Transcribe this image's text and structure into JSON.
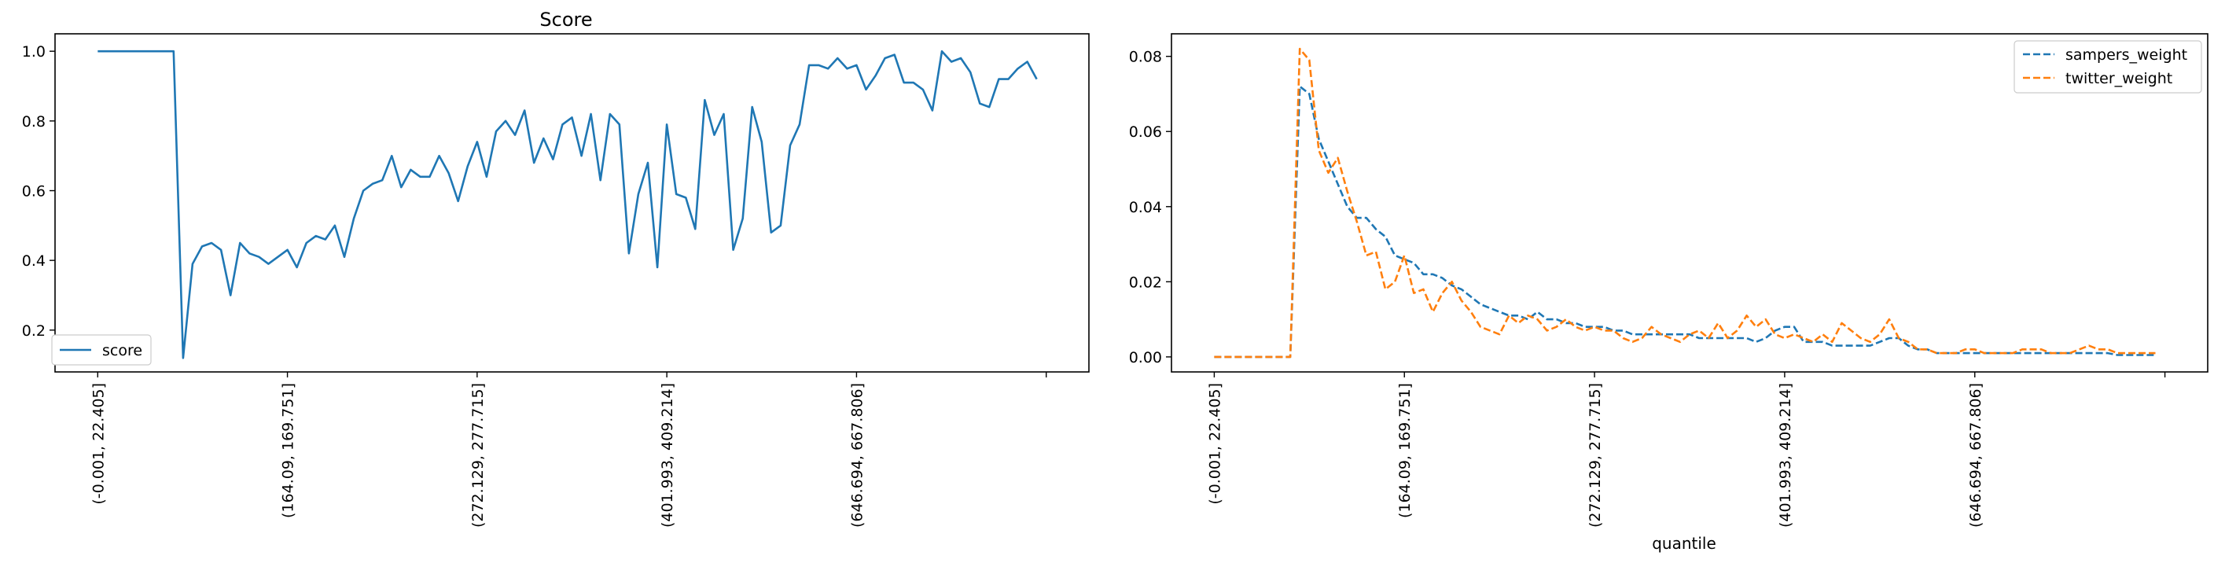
{
  "chart_data": [
    {
      "type": "line",
      "title": "Score",
      "xlabel": "",
      "ylabel": "",
      "ylim": [
        0.08,
        1.05
      ],
      "grid": false,
      "legend": "lower-left",
      "x_tick_labels": [
        "(-0.001, 22.405]",
        "(164.09, 169.751]",
        "(272.129, 277.715]",
        "(401.993, 409.214]",
        "(646.694, 667.806]",
        ""
      ],
      "x_tick_positions": [
        0,
        20,
        40,
        60,
        80,
        100
      ],
      "y_ticks": [
        "0.2",
        "0.4",
        "0.6",
        "0.8",
        "1.0"
      ],
      "series": [
        {
          "name": "score",
          "color": "#1f77b4",
          "dash": "solid",
          "values": [
            1.0,
            1.0,
            1.0,
            1.0,
            1.0,
            1.0,
            1.0,
            1.0,
            1.0,
            0.12,
            0.39,
            0.44,
            0.45,
            0.43,
            0.3,
            0.45,
            0.42,
            0.41,
            0.39,
            0.41,
            0.43,
            0.38,
            0.45,
            0.47,
            0.46,
            0.5,
            0.41,
            0.52,
            0.6,
            0.62,
            0.63,
            0.7,
            0.61,
            0.66,
            0.64,
            0.64,
            0.7,
            0.65,
            0.57,
            0.67,
            0.74,
            0.64,
            0.77,
            0.8,
            0.76,
            0.83,
            0.68,
            0.75,
            0.69,
            0.79,
            0.81,
            0.7,
            0.82,
            0.63,
            0.82,
            0.79,
            0.42,
            0.59,
            0.68,
            0.38,
            0.79,
            0.59,
            0.58,
            0.49,
            0.86,
            0.76,
            0.82,
            0.43,
            0.52,
            0.84,
            0.74,
            0.48,
            0.5,
            0.73,
            0.79,
            0.96,
            0.96,
            0.95,
            0.98,
            0.95,
            0.96,
            0.89,
            0.93,
            0.98,
            0.99,
            0.91,
            0.91,
            0.89,
            0.83,
            1.0,
            0.97,
            0.98,
            0.94,
            0.85,
            0.84,
            0.92,
            0.92,
            0.95,
            0.97,
            0.92
          ]
        }
      ]
    },
    {
      "type": "line",
      "title": "",
      "xlabel": "quantile",
      "ylabel": "",
      "ylim": [
        -0.004,
        0.086
      ],
      "grid": false,
      "legend": "top-right",
      "x_tick_labels": [
        "(-0.001, 22.405]",
        "(164.09, 169.751]",
        "(272.129, 277.715]",
        "(401.993, 409.214]",
        "(646.694, 667.806]",
        ""
      ],
      "x_tick_positions": [
        0,
        20,
        40,
        60,
        80,
        100
      ],
      "y_ticks": [
        "0.00",
        "0.02",
        "0.04",
        "0.06",
        "0.08"
      ],
      "series": [
        {
          "name": "sampers_weight",
          "color": "#1f77b4",
          "dash": "dashed",
          "values": [
            0,
            0,
            0,
            0,
            0,
            0,
            0,
            0,
            0.0,
            0.072,
            0.07,
            0.058,
            0.052,
            0.046,
            0.04,
            0.037,
            0.037,
            0.034,
            0.032,
            0.027,
            0.026,
            0.025,
            0.022,
            0.022,
            0.021,
            0.019,
            0.018,
            0.016,
            0.014,
            0.013,
            0.012,
            0.011,
            0.011,
            0.01,
            0.012,
            0.01,
            0.01,
            0.009,
            0.009,
            0.008,
            0.008,
            0.008,
            0.007,
            0.007,
            0.006,
            0.006,
            0.006,
            0.006,
            0.006,
            0.006,
            0.006,
            0.005,
            0.005,
            0.005,
            0.005,
            0.005,
            0.005,
            0.004,
            0.005,
            0.007,
            0.008,
            0.008,
            0.004,
            0.004,
            0.004,
            0.003,
            0.003,
            0.003,
            0.003,
            0.003,
            0.004,
            0.005,
            0.005,
            0.003,
            0.002,
            0.002,
            0.001,
            0.001,
            0.001,
            0.001,
            0.001,
            0.001,
            0.001,
            0.001,
            0.001,
            0.001,
            0.001,
            0.001,
            0.001,
            0.001,
            0.001,
            0.001,
            0.001,
            0.001,
            0.001,
            0.0005,
            0.0005,
            0.0005,
            0.0005,
            0.0005
          ]
        },
        {
          "name": "twitter_weight",
          "color": "#ff7f0e",
          "dash": "dashed",
          "values": [
            0,
            0,
            0,
            0,
            0,
            0,
            0,
            0,
            0.0,
            0.082,
            0.079,
            0.055,
            0.049,
            0.053,
            0.044,
            0.036,
            0.027,
            0.028,
            0.018,
            0.02,
            0.027,
            0.017,
            0.018,
            0.012,
            0.017,
            0.02,
            0.015,
            0.012,
            0.008,
            0.007,
            0.006,
            0.011,
            0.009,
            0.011,
            0.01,
            0.007,
            0.008,
            0.01,
            0.008,
            0.007,
            0.008,
            0.007,
            0.007,
            0.005,
            0.004,
            0.005,
            0.008,
            0.006,
            0.005,
            0.004,
            0.006,
            0.007,
            0.005,
            0.009,
            0.005,
            0.007,
            0.011,
            0.008,
            0.01,
            0.006,
            0.005,
            0.006,
            0.005,
            0.004,
            0.006,
            0.004,
            0.009,
            0.007,
            0.005,
            0.004,
            0.006,
            0.01,
            0.005,
            0.004,
            0.002,
            0.002,
            0.001,
            0.001,
            0.001,
            0.002,
            0.002,
            0.001,
            0.001,
            0.001,
            0.001,
            0.002,
            0.002,
            0.002,
            0.001,
            0.001,
            0.001,
            0.002,
            0.003,
            0.002,
            0.002,
            0.001,
            0.001,
            0.001,
            0.001,
            0.001
          ]
        }
      ]
    }
  ]
}
